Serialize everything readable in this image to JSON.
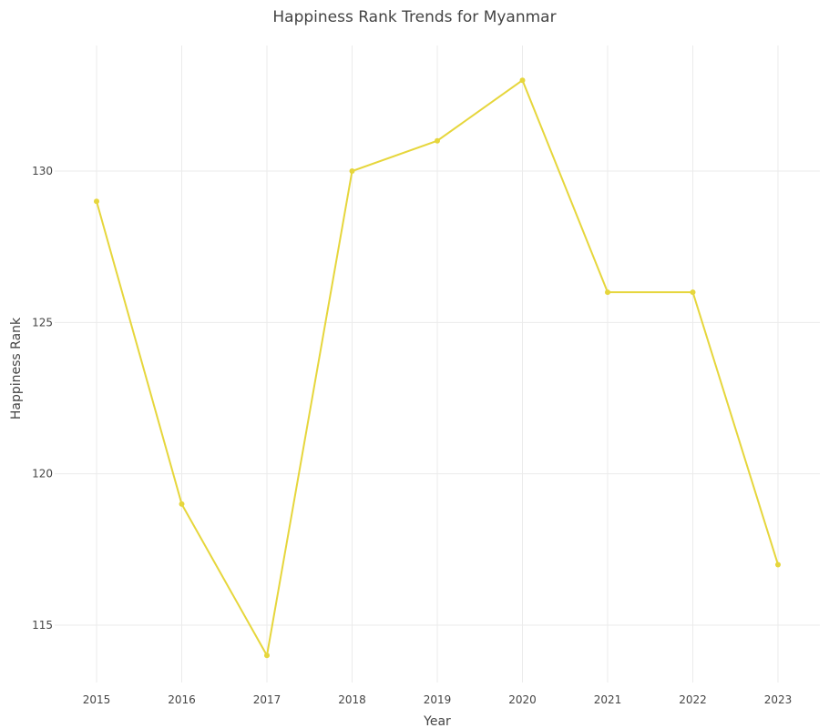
{
  "chart_data": {
    "type": "line",
    "title": "Happiness Rank Trends for Myanmar",
    "xlabel": "Year",
    "ylabel": "Happiness Rank",
    "x": [
      2015,
      2016,
      2017,
      2018,
      2019,
      2020,
      2021,
      2022,
      2023
    ],
    "series": [
      {
        "values": [
          129,
          119,
          114,
          130,
          131,
          133,
          126,
          126,
          117
        ]
      }
    ],
    "yticks": [
      115,
      120,
      125,
      130
    ],
    "ylim": [
      112.6,
      134.2
    ],
    "grid": true,
    "legend": "none",
    "line_color": "#e6d63c"
  }
}
